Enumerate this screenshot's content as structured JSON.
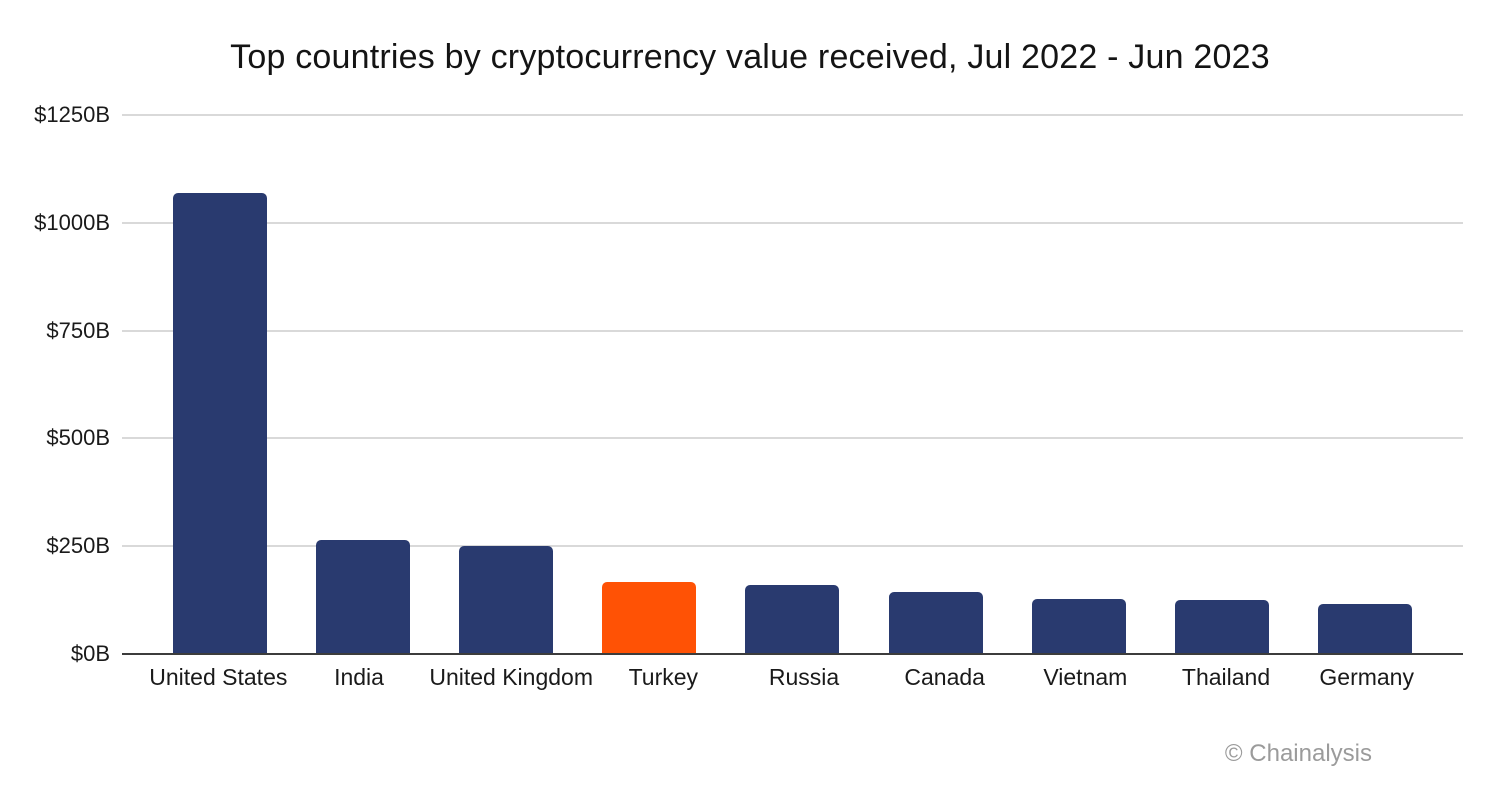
{
  "chart": {
    "title": "Top countries by cryptocurrency value received, Jul 2022 - Jun 2023",
    "footer": "© Chainalysis"
  },
  "chart_data": {
    "type": "bar",
    "title": "Top countries by cryptocurrency value received, Jul 2022 - Jun 2023",
    "categories": [
      "United States",
      "India",
      "United Kingdom",
      "Turkey",
      "Russia",
      "Canada",
      "Vietnam",
      "Thailand",
      "Germany"
    ],
    "values": [
      1070,
      265,
      250,
      167,
      160,
      144,
      128,
      125,
      117
    ],
    "unit": "$B",
    "xlabel": "",
    "ylabel": "",
    "ylim": [
      0,
      1250
    ],
    "yticks": [
      {
        "value": 0,
        "label": "$0B"
      },
      {
        "value": 250,
        "label": "$250B"
      },
      {
        "value": 500,
        "label": "$500B"
      },
      {
        "value": 750,
        "label": "$750B"
      },
      {
        "value": 1000,
        "label": "$1000B"
      },
      {
        "value": 1250,
        "label": "$1250B"
      }
    ],
    "grid": "horizontal",
    "legend_position": "none",
    "highlight_index": 3,
    "bar_color_default": "#293A6F",
    "bar_color_highlight": "#FF5205",
    "colors": {
      "gridline": "#D9D9D9",
      "axis_line": "#3C3C3C",
      "tick_text": "#1A1A1A",
      "label_text": "#1A1A1A",
      "title_text": "#141414",
      "footer_text": "#9B9B9B",
      "background": "#FFFFFF"
    }
  }
}
